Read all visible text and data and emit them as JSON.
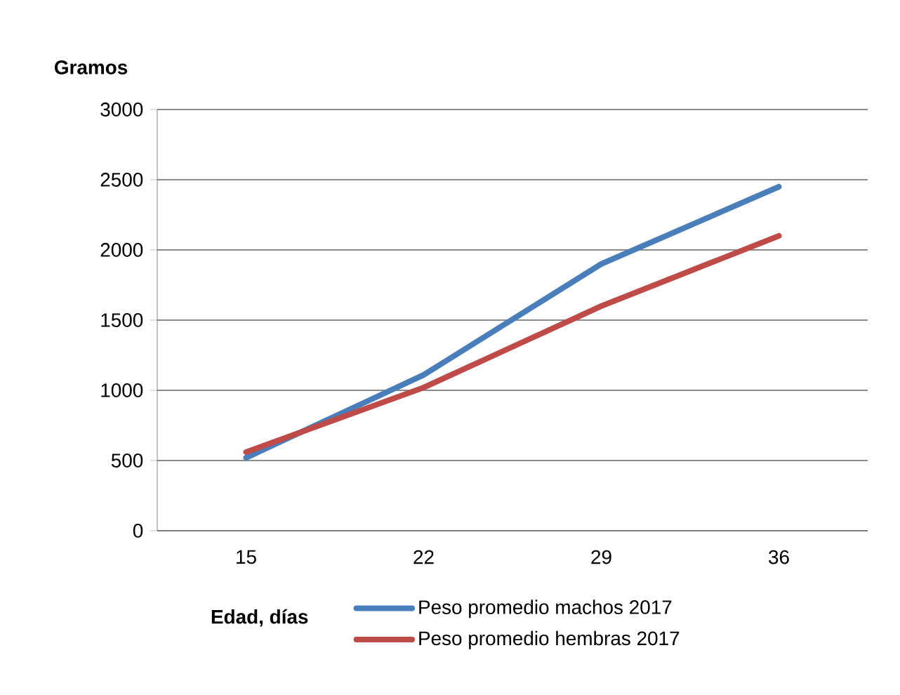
{
  "chart_data": {
    "type": "line",
    "xlabel": "Edad, días",
    "ylabel": "Gramos",
    "categories": [
      "15",
      "22",
      "29",
      "36"
    ],
    "series": [
      {
        "name": "Peso promedio machos 2017",
        "color": "#4a7ebb",
        "values": [
          520,
          1110,
          1900,
          2450
        ]
      },
      {
        "name": "Peso promedio hembras 2017",
        "color": "#be4b48",
        "values": [
          560,
          1020,
          1600,
          2100
        ]
      }
    ],
    "ylim": [
      0,
      3000
    ],
    "yticks": [
      0,
      500,
      1000,
      1500,
      2000,
      2500,
      3000
    ],
    "grid": "y",
    "legend": "bottom",
    "marker": "none",
    "line_style": "solid"
  }
}
